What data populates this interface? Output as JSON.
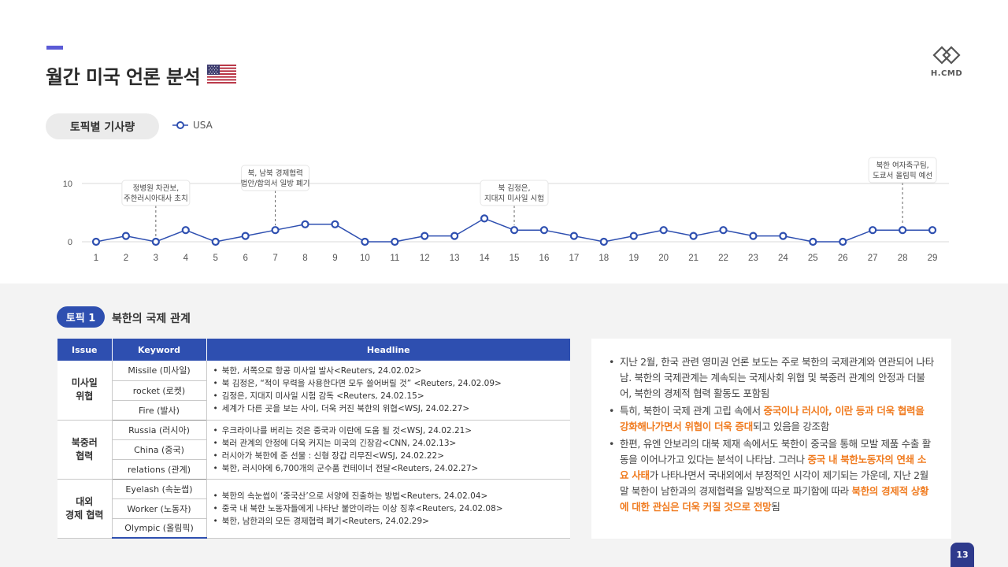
{
  "header": {
    "title": "월간 미국 언론 분석",
    "logo_text": "H.CMD"
  },
  "topic_pill": "토픽별 기사량",
  "legend_label": "USA",
  "colors": {
    "accent": "#2e4fb0",
    "highlight": "#f07c21",
    "line": "#2e4fb0"
  },
  "chart_data": {
    "type": "line",
    "x": [
      1,
      2,
      3,
      4,
      5,
      6,
      7,
      8,
      9,
      10,
      11,
      12,
      13,
      14,
      15,
      16,
      17,
      18,
      19,
      20,
      21,
      22,
      23,
      24,
      25,
      26,
      27,
      28,
      29
    ],
    "series": [
      {
        "name": "USA",
        "values": [
          0,
          1,
          0,
          2,
          0,
          1,
          2,
          3,
          3,
          0,
          0,
          1,
          1,
          4,
          2,
          2,
          1,
          0,
          1,
          2,
          1,
          2,
          1,
          1,
          0,
          0,
          2,
          2,
          2
        ]
      }
    ],
    "yticks": [
      0,
      10
    ],
    "ylim": [
      0,
      10
    ],
    "grid": true,
    "annotations": [
      {
        "x": 3,
        "lines": [
          "정병원 차관보,",
          "주한러시아대사 초치"
        ]
      },
      {
        "x": 7,
        "lines": [
          "북, 남북 경제협력",
          "법안/합의서 일방 폐기"
        ]
      },
      {
        "x": 15,
        "lines": [
          "북 김정은,",
          "지대지 미사일 시험"
        ]
      },
      {
        "x": 28,
        "lines": [
          "북한 여자축구팀,",
          "도쿄서 올림픽 예선"
        ]
      }
    ]
  },
  "topic1": {
    "badge": "토픽 1",
    "title": "북한의 국제 관계"
  },
  "table": {
    "headers": [
      "Issue",
      "Keyword",
      "Headline"
    ],
    "groups": [
      {
        "issue": [
          "미사일",
          "위협"
        ],
        "keywords": [
          "Missile (미사일)",
          "rocket (로켓)",
          "Fire (발사)"
        ],
        "headlines": [
          "북한, 서쪽으로 항공 미사일 발사<Reuters, 24.02.02>",
          "북 김정은, “적이 무력을 사용한다면 모두 쓸어버릴 것” <Reuters, 24.02.09>",
          "김정은, 지대지 미사일 시험 감독 <Reuters, 24.02.15>",
          "세계가 다른 곳을 보는 사이, 더욱 커진 북한의 위협<WSJ, 24.02.27>"
        ]
      },
      {
        "issue": [
          "북중러",
          "협력"
        ],
        "keywords": [
          "Russia (러시아)",
          "China (중국)",
          "relations (관계)"
        ],
        "headlines": [
          "우크라이나를 버리는 것은 중국과 이란에 도움 될 것<WSJ, 24.02.21>",
          "북러 관계의 안정에 더욱 커지는 미국의 긴장감<CNN, 24.02.13>",
          "러시아가 북한에 준 선물 : 신형 장갑 리무진<WSJ, 24.02.22>",
          "북한, 러시아에 6,700개의 군수품 컨테이너 전달<Reuters, 24.02.27>"
        ]
      },
      {
        "issue": [
          "대외",
          "경제 협력"
        ],
        "keywords": [
          "Eyelash (속눈썹)",
          "Worker (노동자)",
          "Olympic (올림픽)"
        ],
        "headlines": [
          "북한의 속눈썹이 ‘중국산’으로 서양에 진출하는 방법<Reuters, 24.02.04>",
          "중국 내 북한 노동자들에게 나타난 불안이라는 이상 징후<Reuters, 24.02.08>",
          "북한, 남한과의 모든 경제협력 폐기<Reuters, 24.02.29>"
        ]
      }
    ]
  },
  "summary": {
    "b1": "지난 2월, 한국 관련 영미권 언론 보도는 주로 북한의 국제관계와 연관되어 나타남. 북한의 국제관계는 계속되는 국제사회 위협 및 북중러 관계의 안정과 더불어, 북한의 경제적 협력 활동도 포함됨",
    "b2_pre": "특히, 북한이 국제 관계 고립 속에서 ",
    "b2_hl": "중국이나 러시아, 이란 등과 더욱 협력을 강화해나가면서 위협이 더욱 증대",
    "b2_post": "되고 있음을 강조함",
    "b3_pre": "한편, 유엔 안보리의 대북 제재 속에서도 북한이 중국을 통해 모발 제품 수출 활동을 이어나가고 있다는 분석이 나타남. 그러나 ",
    "b3_hl1": "중국 내 북한노동자의 연쇄 소요 사태",
    "b3_mid": "가 나타나면서 국내외에서 부정적인 시각이 제기되는 가운데, 지난 2월 말 북한이 남한과의 경제협력을 일방적으로 파기함에 따라 ",
    "b3_hl2": "북한의 경제적 상황에 대한 관심은 더욱 커질 것으로 전망",
    "b3_post": "됨"
  },
  "page_number": "13"
}
